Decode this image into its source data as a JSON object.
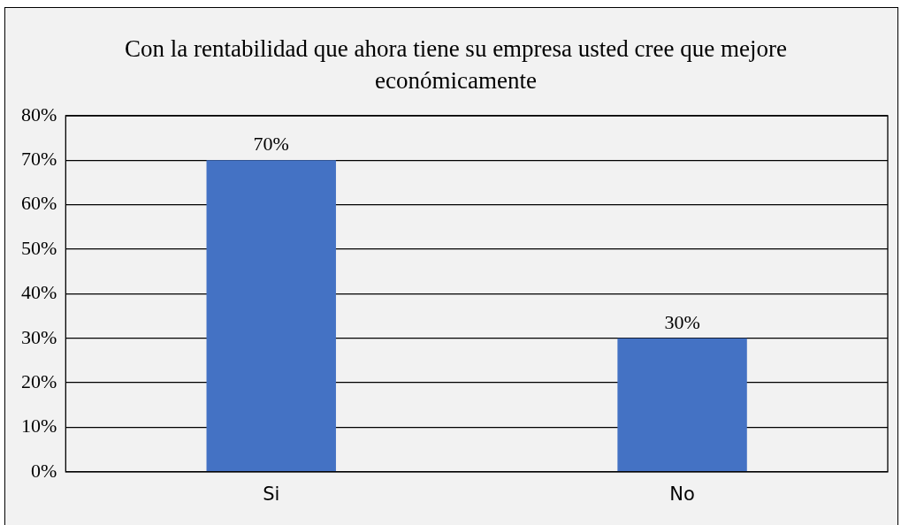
{
  "chart_data": {
    "type": "bar",
    "title": "Con la rentabilidad que ahora tiene su empresa usted cree que mejore económicamente",
    "categories": [
      "Si",
      "No"
    ],
    "values": [
      70,
      30
    ],
    "color": "#4472c4",
    "value_labels": [
      "70%",
      "30%"
    ],
    "ylim": [
      0,
      80
    ],
    "yticks": [
      {
        "value": 0,
        "label": "0%"
      },
      {
        "value": 10,
        "label": "10%"
      },
      {
        "value": 20,
        "label": "20%"
      },
      {
        "value": 30,
        "label": "30%"
      },
      {
        "value": 40,
        "label": "40%"
      },
      {
        "value": 50,
        "label": "50%"
      },
      {
        "value": 60,
        "label": "60%"
      },
      {
        "value": 70,
        "label": "70%"
      },
      {
        "value": 80,
        "label": "80%"
      }
    ],
    "grid": "y",
    "legend": false
  }
}
